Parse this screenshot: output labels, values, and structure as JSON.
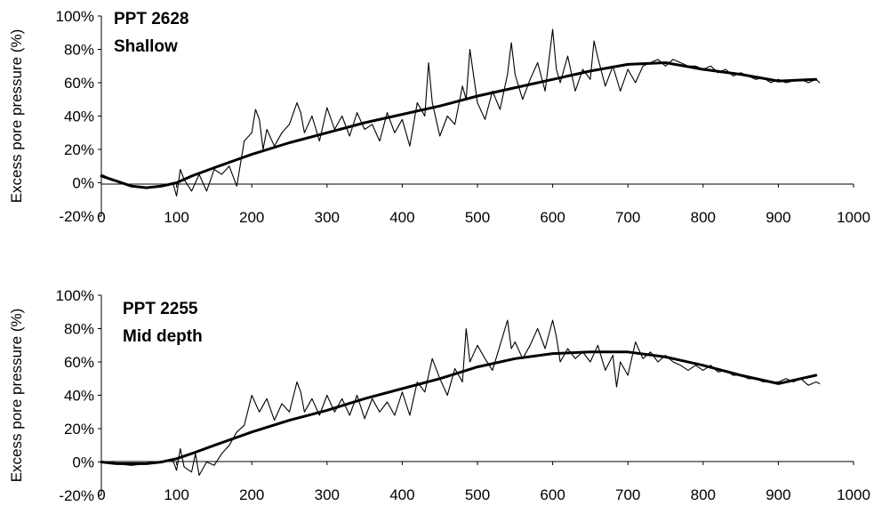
{
  "chart_data": [
    {
      "type": "line",
      "title": "PPT 2628",
      "subtitle": "Shallow",
      "xlabel": "",
      "ylabel": "Excess pore pressure (%)",
      "xlim": [
        0,
        1000
      ],
      "ylim": [
        -20,
        100
      ],
      "x_ticks": [
        "0",
        "100",
        "200",
        "300",
        "400",
        "500",
        "600",
        "700",
        "800",
        "900",
        "1000"
      ],
      "y_ticks": [
        "100%",
        "80%",
        "60%",
        "40%",
        "20%",
        "0%",
        "-20%"
      ],
      "grid": false,
      "legend": "none",
      "series": [
        {
          "role": "measured",
          "x": [
            0,
            20,
            40,
            60,
            80,
            95,
            100,
            105,
            110,
            120,
            130,
            140,
            150,
            160,
            170,
            180,
            190,
            200,
            205,
            210,
            215,
            220,
            230,
            240,
            250,
            260,
            265,
            270,
            280,
            290,
            300,
            310,
            320,
            330,
            340,
            350,
            360,
            370,
            380,
            390,
            400,
            410,
            420,
            430,
            435,
            440,
            450,
            460,
            470,
            480,
            485,
            490,
            500,
            510,
            520,
            530,
            540,
            545,
            550,
            560,
            570,
            580,
            590,
            600,
            605,
            610,
            620,
            630,
            640,
            650,
            655,
            660,
            670,
            680,
            690,
            700,
            710,
            720,
            730,
            740,
            750,
            760,
            770,
            780,
            790,
            800,
            810,
            820,
            830,
            840,
            850,
            860,
            870,
            880,
            890,
            900,
            910,
            920,
            930,
            940,
            950,
            955
          ],
          "y": [
            5,
            1,
            -2,
            -3,
            -2,
            0,
            -8,
            8,
            2,
            -5,
            5,
            -5,
            8,
            5,
            10,
            -2,
            25,
            30,
            44,
            38,
            20,
            32,
            22,
            30,
            35,
            48,
            42,
            30,
            40,
            25,
            45,
            32,
            40,
            28,
            42,
            32,
            35,
            25,
            42,
            30,
            38,
            22,
            48,
            40,
            72,
            48,
            28,
            40,
            35,
            58,
            50,
            80,
            48,
            38,
            55,
            44,
            65,
            84,
            65,
            50,
            62,
            72,
            55,
            92,
            68,
            60,
            76,
            55,
            68,
            62,
            85,
            75,
            58,
            70,
            55,
            68,
            60,
            70,
            72,
            74,
            70,
            74,
            72,
            70,
            70,
            68,
            70,
            66,
            68,
            64,
            66,
            64,
            62,
            63,
            60,
            62,
            60,
            61,
            62,
            60,
            62,
            60
          ],
          "marks": []
        },
        {
          "role": "trend",
          "x": [
            0,
            20,
            40,
            60,
            80,
            100,
            120,
            150,
            200,
            250,
            300,
            350,
            400,
            450,
            500,
            550,
            600,
            650,
            700,
            750,
            800,
            850,
            900,
            950
          ],
          "y": [
            4,
            1,
            -2,
            -3,
            -2,
            0,
            4,
            9,
            17,
            24,
            30,
            36,
            41,
            46,
            52,
            57,
            62,
            67,
            71,
            72,
            68,
            65,
            61,
            62
          ],
          "marks": []
        }
      ]
    },
    {
      "type": "line",
      "title": "PPT 2255",
      "subtitle": "Mid depth",
      "xlabel": "",
      "ylabel": "Excess pore pressure (%)",
      "xlim": [
        0,
        1000
      ],
      "ylim": [
        -20,
        100
      ],
      "x_ticks": [
        "0",
        "100",
        "200",
        "300",
        "400",
        "500",
        "600",
        "700",
        "800",
        "900",
        "1000"
      ],
      "y_ticks": [
        "100%",
        "80%",
        "60%",
        "40%",
        "20%",
        "0%",
        "-20%"
      ],
      "grid": false,
      "legend": "none",
      "series": [
        {
          "role": "measured",
          "x": [
            0,
            20,
            40,
            60,
            80,
            95,
            100,
            105,
            110,
            120,
            125,
            130,
            140,
            150,
            160,
            170,
            180,
            190,
            200,
            205,
            210,
            220,
            230,
            240,
            250,
            260,
            265,
            270,
            280,
            290,
            300,
            310,
            320,
            330,
            340,
            350,
            360,
            370,
            380,
            390,
            400,
            410,
            420,
            430,
            440,
            450,
            460,
            470,
            480,
            485,
            490,
            500,
            510,
            520,
            530,
            540,
            545,
            550,
            560,
            570,
            580,
            590,
            600,
            605,
            610,
            620,
            630,
            640,
            650,
            660,
            670,
            680,
            685,
            690,
            700,
            710,
            720,
            730,
            740,
            750,
            760,
            770,
            780,
            790,
            800,
            810,
            820,
            830,
            840,
            850,
            860,
            870,
            880,
            890,
            900,
            910,
            920,
            930,
            940,
            950,
            955
          ],
          "y": [
            0,
            -1,
            -2,
            -1,
            0,
            1,
            -5,
            8,
            -3,
            -6,
            5,
            -8,
            0,
            -2,
            5,
            10,
            18,
            22,
            40,
            35,
            30,
            38,
            25,
            35,
            30,
            48,
            42,
            30,
            38,
            28,
            40,
            30,
            38,
            28,
            40,
            26,
            38,
            30,
            36,
            28,
            42,
            28,
            48,
            42,
            62,
            50,
            40,
            56,
            48,
            80,
            60,
            70,
            62,
            55,
            70,
            85,
            68,
            72,
            62,
            70,
            80,
            68,
            85,
            75,
            60,
            68,
            62,
            66,
            60,
            70,
            55,
            64,
            45,
            60,
            52,
            72,
            62,
            66,
            60,
            64,
            60,
            58,
            55,
            58,
            55,
            58,
            54,
            55,
            52,
            52,
            50,
            50,
            48,
            48,
            48,
            50,
            48,
            50,
            46,
            48,
            47
          ],
          "marks": []
        },
        {
          "role": "trend",
          "x": [
            0,
            20,
            40,
            60,
            80,
            100,
            120,
            150,
            200,
            250,
            300,
            350,
            400,
            450,
            500,
            550,
            600,
            650,
            700,
            750,
            800,
            850,
            900,
            950
          ],
          "y": [
            0,
            -1,
            -1,
            -1,
            0,
            2,
            5,
            10,
            18,
            25,
            31,
            38,
            44,
            50,
            57,
            62,
            65,
            66,
            66,
            63,
            58,
            52,
            47,
            52
          ],
          "marks": []
        }
      ]
    }
  ]
}
